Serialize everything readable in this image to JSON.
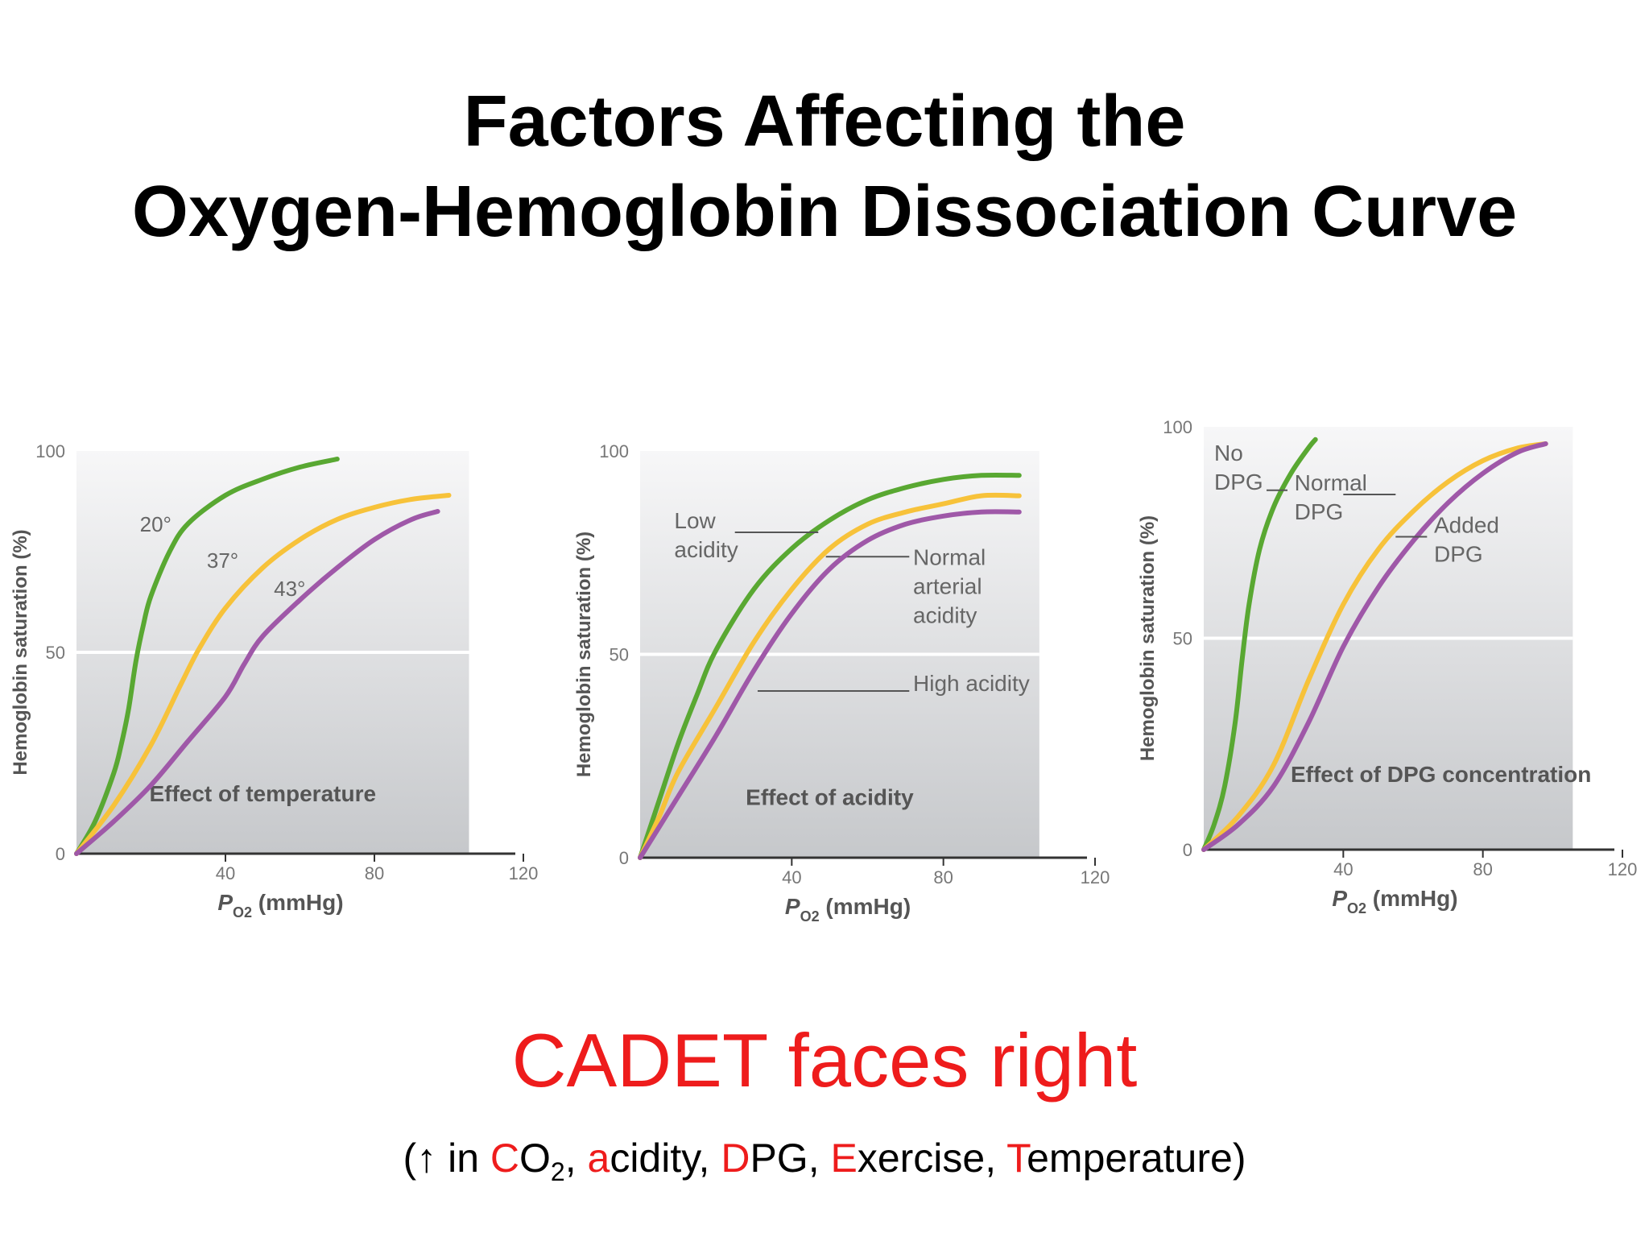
{
  "slide": {
    "title_line1": "Factors Affecting the",
    "title_line2": "Oxygen-Hemoglobin Dissociation Curve",
    "subtitle": "CADET faces right",
    "mnemonic": {
      "open": "(",
      "arrow": "↑",
      "in_text": " in ",
      "c_letter": "C",
      "o_text": "O",
      "two_sub": "2",
      "sep1": ", ",
      "a_letter": "a",
      "acidity_rest": "cidity",
      "sep2": ", ",
      "d_letter": "D",
      "dpg_rest": "PG",
      "sep3": ", ",
      "e_letter": "E",
      "exercise_rest": "xercise",
      "sep4": ", ",
      "t_letter": "T",
      "temperature_rest": "emperature",
      "close": ")"
    }
  },
  "colors": {
    "green": "#59a832",
    "yellow": "#f7c23a",
    "purple": "#9f58a8",
    "accent_red": "#ee1c1c"
  },
  "chart_data": [
    {
      "type": "line",
      "title": "Effect of temperature",
      "xlabel_main": "P",
      "xlabel_sub": "O2",
      "xlabel_unit": " (mmHg)",
      "ylabel": "Hemoglobin saturation (%)",
      "xlim": [
        0,
        120
      ],
      "ylim": [
        0,
        100
      ],
      "xticks": [
        40,
        80,
        120
      ],
      "yticks": [
        0,
        50,
        100
      ],
      "guide_y": 50,
      "series": [
        {
          "name": "20°",
          "color": "green",
          "points": [
            [
              0,
              0
            ],
            [
              5,
              8
            ],
            [
              10,
              20
            ],
            [
              12,
              27
            ],
            [
              14,
              36
            ],
            [
              16,
              48
            ],
            [
              18,
              57
            ],
            [
              20,
              64
            ],
            [
              25,
              75
            ],
            [
              30,
              82
            ],
            [
              40,
              89
            ],
            [
              50,
              93
            ],
            [
              60,
              96
            ],
            [
              70,
              98
            ]
          ],
          "label": {
            "text": "20°",
            "at": [
              17,
              80
            ]
          }
        },
        {
          "name": "37°",
          "color": "yellow",
          "points": [
            [
              0,
              0
            ],
            [
              10,
              12
            ],
            [
              20,
              27
            ],
            [
              28,
              42
            ],
            [
              33,
              51
            ],
            [
              40,
              61
            ],
            [
              50,
              71
            ],
            [
              60,
              78
            ],
            [
              70,
              83
            ],
            [
              80,
              86
            ],
            [
              90,
              88
            ],
            [
              100,
              89
            ]
          ],
          "label": {
            "text": "37°",
            "at": [
              35,
              71
            ]
          }
        },
        {
          "name": "43°",
          "color": "purple",
          "points": [
            [
              0,
              0
            ],
            [
              10,
              8
            ],
            [
              20,
              17
            ],
            [
              30,
              28
            ],
            [
              40,
              39
            ],
            [
              45,
              47
            ],
            [
              50,
              54
            ],
            [
              60,
              63
            ],
            [
              70,
              71
            ],
            [
              80,
              78
            ],
            [
              90,
              83
            ],
            [
              97,
              85
            ]
          ],
          "label": {
            "text": "43°",
            "at": [
              53,
              64
            ]
          }
        }
      ]
    },
    {
      "type": "line",
      "title": "Effect of acidity",
      "xlabel_main": "P",
      "xlabel_sub": "O2",
      "xlabel_unit": " (mmHg)",
      "ylabel": "Hemoglobin saturation (%)",
      "xlim": [
        0,
        120
      ],
      "ylim": [
        0,
        100
      ],
      "xticks": [
        40,
        80,
        120
      ],
      "yticks": [
        0,
        50,
        100
      ],
      "guide_y": 50,
      "series": [
        {
          "name": "Low acidity",
          "color": "green",
          "points": [
            [
              0,
              0
            ],
            [
              5,
              14
            ],
            [
              10,
              28
            ],
            [
              15,
              40
            ],
            [
              20,
              51
            ],
            [
              30,
              66
            ],
            [
              40,
              76
            ],
            [
              50,
              83
            ],
            [
              60,
              88
            ],
            [
              70,
              91
            ],
            [
              80,
              93
            ],
            [
              90,
              94
            ],
            [
              100,
              94
            ]
          ],
          "label": {
            "lines": [
              "Low",
              "acidity"
            ],
            "at": [
              9,
              81
            ],
            "leader": [
              [
                25,
                80
              ],
              [
                47,
                80
              ]
            ]
          }
        },
        {
          "name": "Normal arterial acidity",
          "color": "yellow",
          "points": [
            [
              0,
              0
            ],
            [
              5,
              10
            ],
            [
              10,
              21
            ],
            [
              20,
              37
            ],
            [
              30,
              53
            ],
            [
              40,
              66
            ],
            [
              50,
              76
            ],
            [
              60,
              82
            ],
            [
              70,
              85
            ],
            [
              80,
              87
            ],
            [
              90,
              89
            ],
            [
              100,
              89
            ]
          ],
          "label": {
            "lines": [
              "Normal",
              "arterial",
              "acidity"
            ],
            "at": [
              72,
              72
            ],
            "leader": [
              [
                49,
                74
              ],
              [
                71,
                74
              ]
            ]
          }
        },
        {
          "name": "High acidity",
          "color": "purple",
          "points": [
            [
              0,
              0
            ],
            [
              10,
              15
            ],
            [
              20,
              30
            ],
            [
              30,
              46
            ],
            [
              40,
              60
            ],
            [
              50,
              71
            ],
            [
              60,
              78
            ],
            [
              70,
              82
            ],
            [
              80,
              84
            ],
            [
              90,
              85
            ],
            [
              100,
              85
            ]
          ],
          "label": {
            "lines": [
              "High acidity"
            ],
            "at": [
              72,
              41
            ],
            "leader": [
              [
                31,
                41
              ],
              [
                71,
                41
              ]
            ]
          }
        }
      ]
    },
    {
      "type": "line",
      "title": "Effect of DPG concentration",
      "xlabel_main": "P",
      "xlabel_sub": "O2",
      "xlabel_unit": " (mmHg)",
      "ylabel": "Hemoglobin saturation (%)",
      "xlim": [
        0,
        120
      ],
      "ylim": [
        0,
        100
      ],
      "xticks": [
        40,
        80,
        120
      ],
      "yticks": [
        0,
        50,
        100
      ],
      "guide_y": 50,
      "series": [
        {
          "name": "No DPG",
          "color": "green",
          "points": [
            [
              0,
              0
            ],
            [
              3,
              6
            ],
            [
              6,
              15
            ],
            [
              9,
              30
            ],
            [
              11,
              45
            ],
            [
              13,
              58
            ],
            [
              16,
              71
            ],
            [
              20,
              81
            ],
            [
              25,
              89
            ],
            [
              30,
              95
            ],
            [
              32,
              97
            ]
          ],
          "label": {
            "lines": [
              "No",
              "DPG"
            ],
            "at": [
              3,
              92
            ],
            "leader": [
              [
                18,
                85
              ],
              [
                24,
                85
              ]
            ]
          }
        },
        {
          "name": "Normal DPG",
          "color": "yellow",
          "points": [
            [
              0,
              0
            ],
            [
              10,
              8
            ],
            [
              20,
              20
            ],
            [
              30,
              40
            ],
            [
              40,
              58
            ],
            [
              50,
              71
            ],
            [
              60,
              80
            ],
            [
              70,
              87
            ],
            [
              80,
              92
            ],
            [
              90,
              95
            ],
            [
              98,
              96
            ]
          ],
          "label": {
            "lines": [
              "Normal",
              "DPG"
            ],
            "at": [
              26,
              85
            ],
            "leader": [
              [
                40,
                84
              ],
              [
                55,
                84
              ]
            ]
          }
        },
        {
          "name": "Added DPG",
          "color": "purple",
          "points": [
            [
              0,
              0
            ],
            [
              10,
              6
            ],
            [
              20,
              15
            ],
            [
              30,
              30
            ],
            [
              40,
              48
            ],
            [
              50,
              62
            ],
            [
              60,
              73
            ],
            [
              70,
              82
            ],
            [
              80,
              89
            ],
            [
              90,
              94
            ],
            [
              98,
              96
            ]
          ],
          "label": {
            "lines": [
              "Added",
              "DPG"
            ],
            "at": [
              66,
              75
            ],
            "leader": [
              [
                55,
                74
              ],
              [
                64,
                74
              ]
            ]
          }
        }
      ]
    }
  ]
}
